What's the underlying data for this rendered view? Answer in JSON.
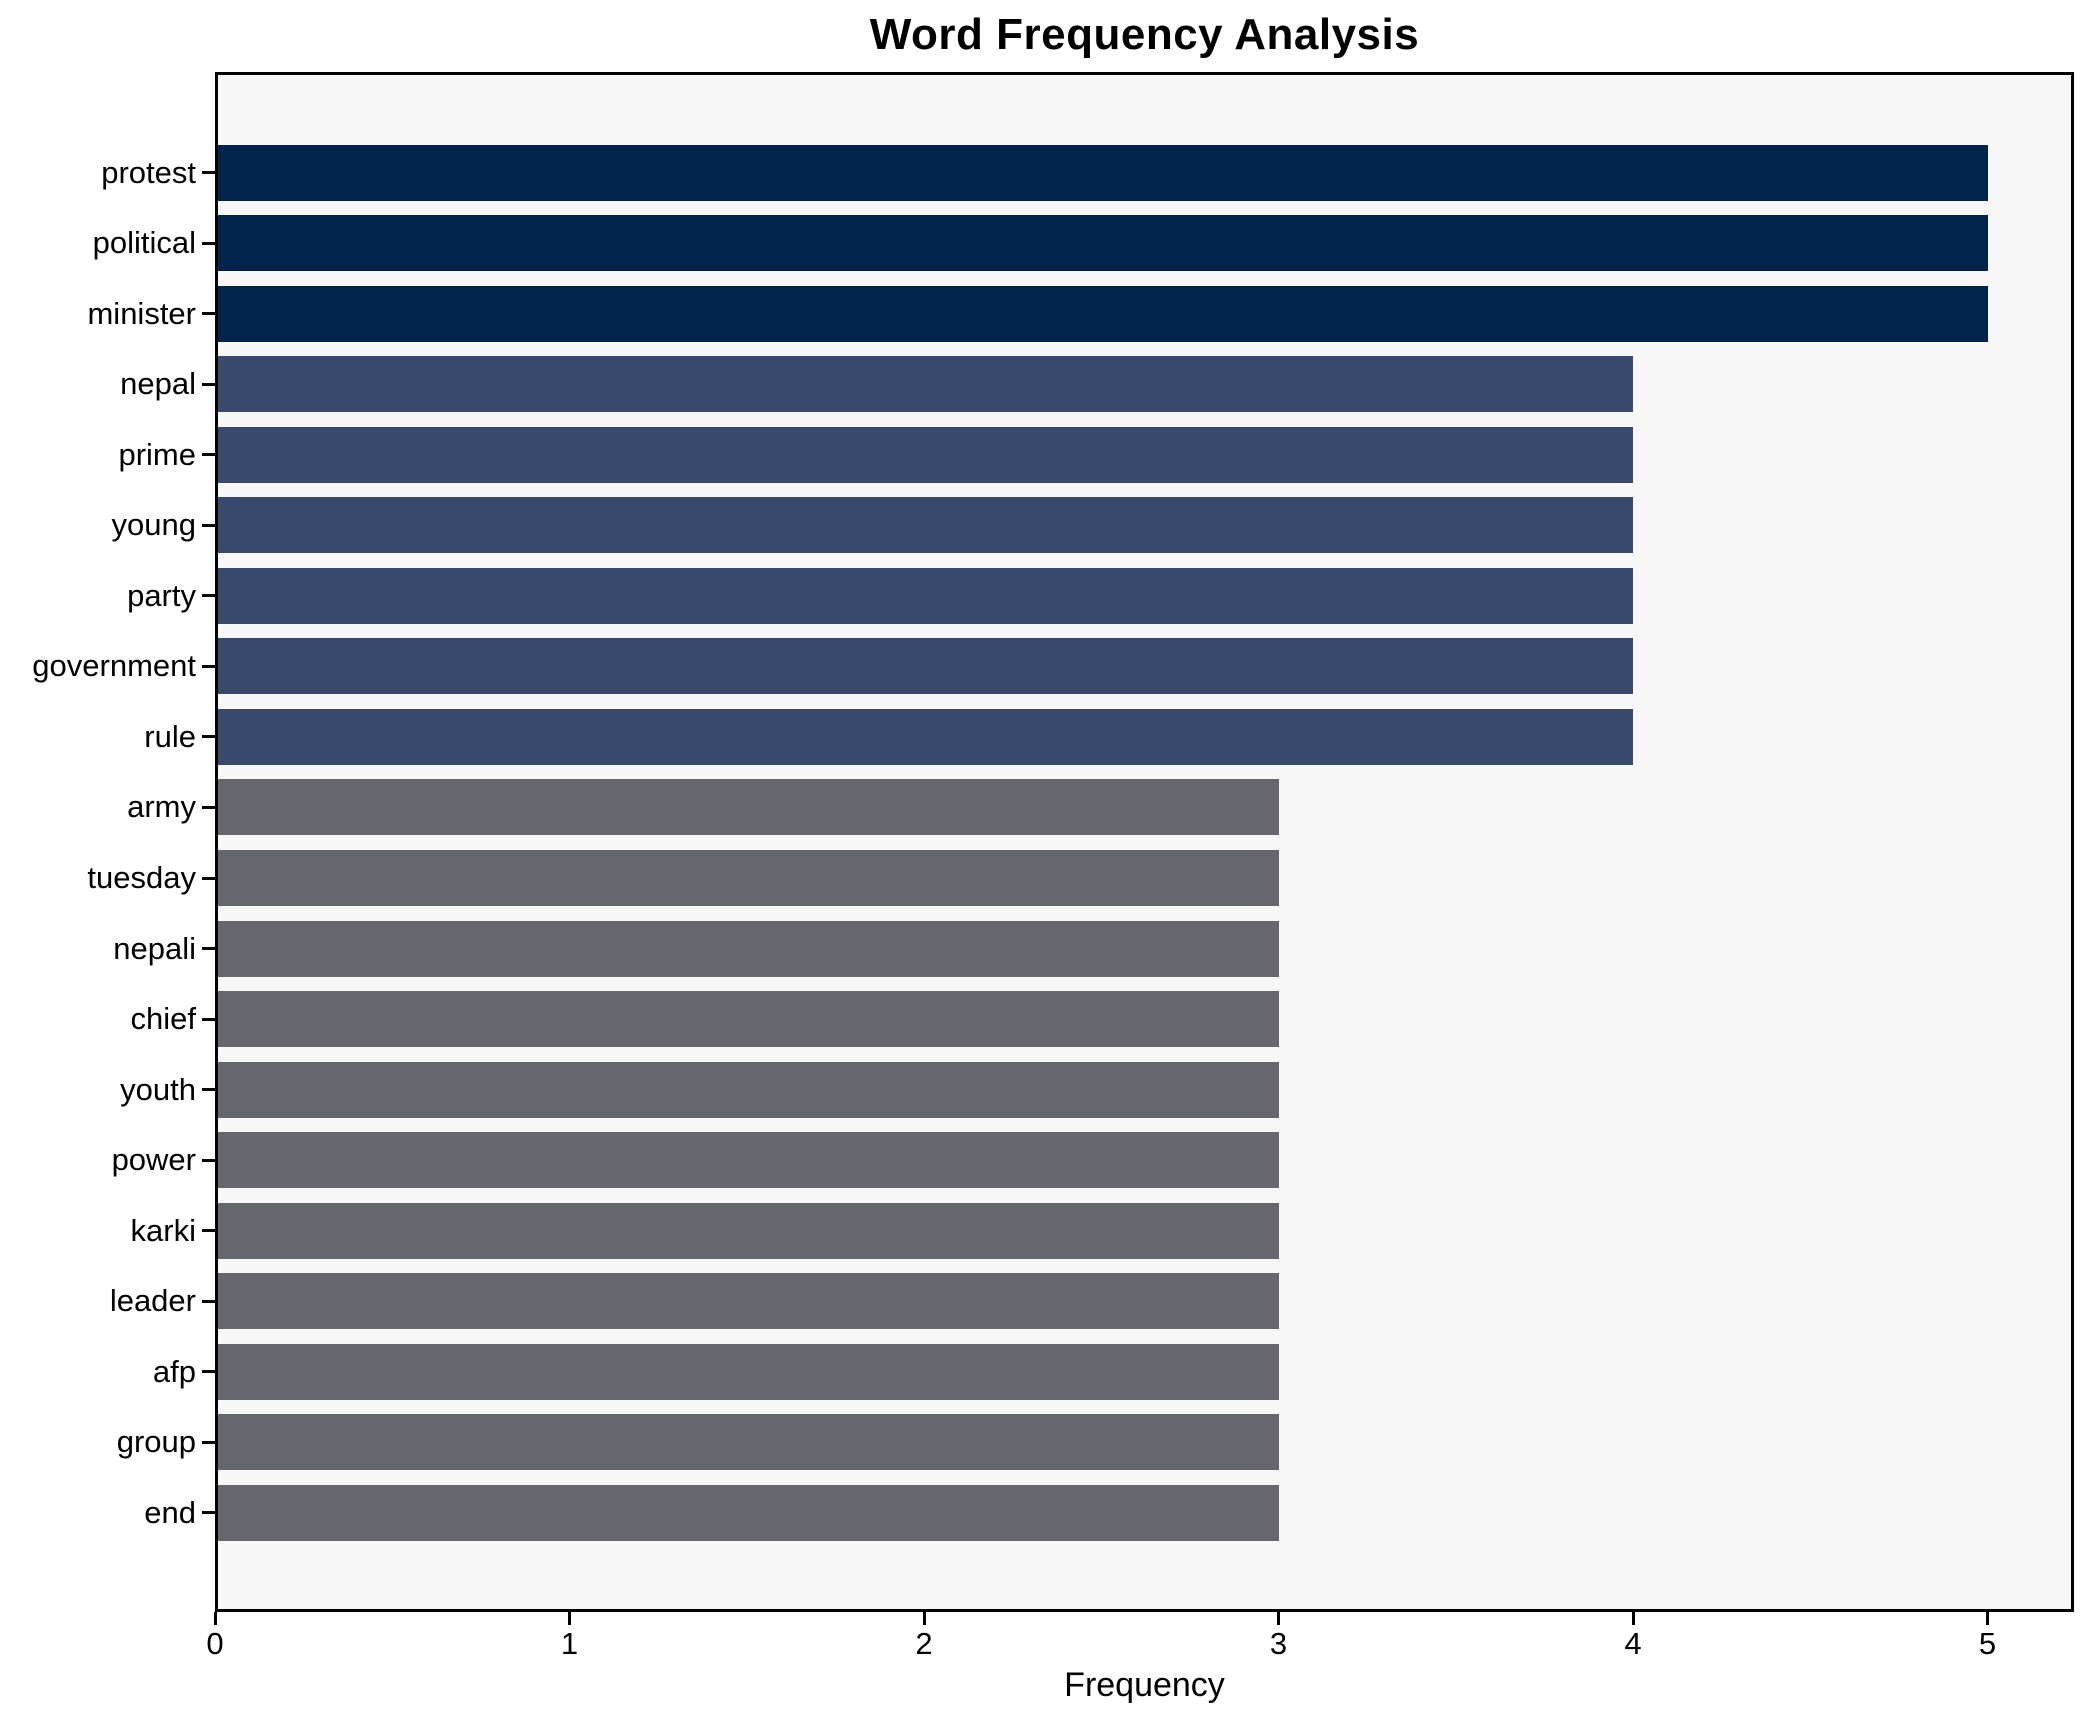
{
  "title": "Word Frequency Analysis",
  "xlabel": "Frequency",
  "colors": {
    "bar_high": "#02234b",
    "bar_mid": "#39496d",
    "bar_low": "#65676d",
    "plot_background": "#f7f7f8",
    "figure_background": "#ffffff",
    "axis": "#000000",
    "text": "#000000"
  },
  "chart_data": {
    "type": "bar",
    "orientation": "horizontal",
    "title": "Word Frequency Analysis",
    "xlabel": "Frequency",
    "ylabel": "",
    "categories": [
      "protest",
      "political",
      "minister",
      "nepal",
      "prime",
      "young",
      "party",
      "government",
      "rule",
      "army",
      "tuesday",
      "nepali",
      "chief",
      "youth",
      "power",
      "karki",
      "leader",
      "afp",
      "group",
      "end"
    ],
    "values": [
      5,
      5,
      5,
      4,
      4,
      4,
      4,
      4,
      4,
      3,
      3,
      3,
      3,
      3,
      3,
      3,
      3,
      3,
      3,
      3
    ],
    "bar_colors_by_value": {
      "5": "#02234b",
      "4": "#39496d",
      "3": "#65676d"
    },
    "x_ticks": [
      0,
      1,
      2,
      3,
      4,
      5
    ],
    "xlim": [
      0,
      5.244
    ],
    "grid": false,
    "legend": null
  }
}
